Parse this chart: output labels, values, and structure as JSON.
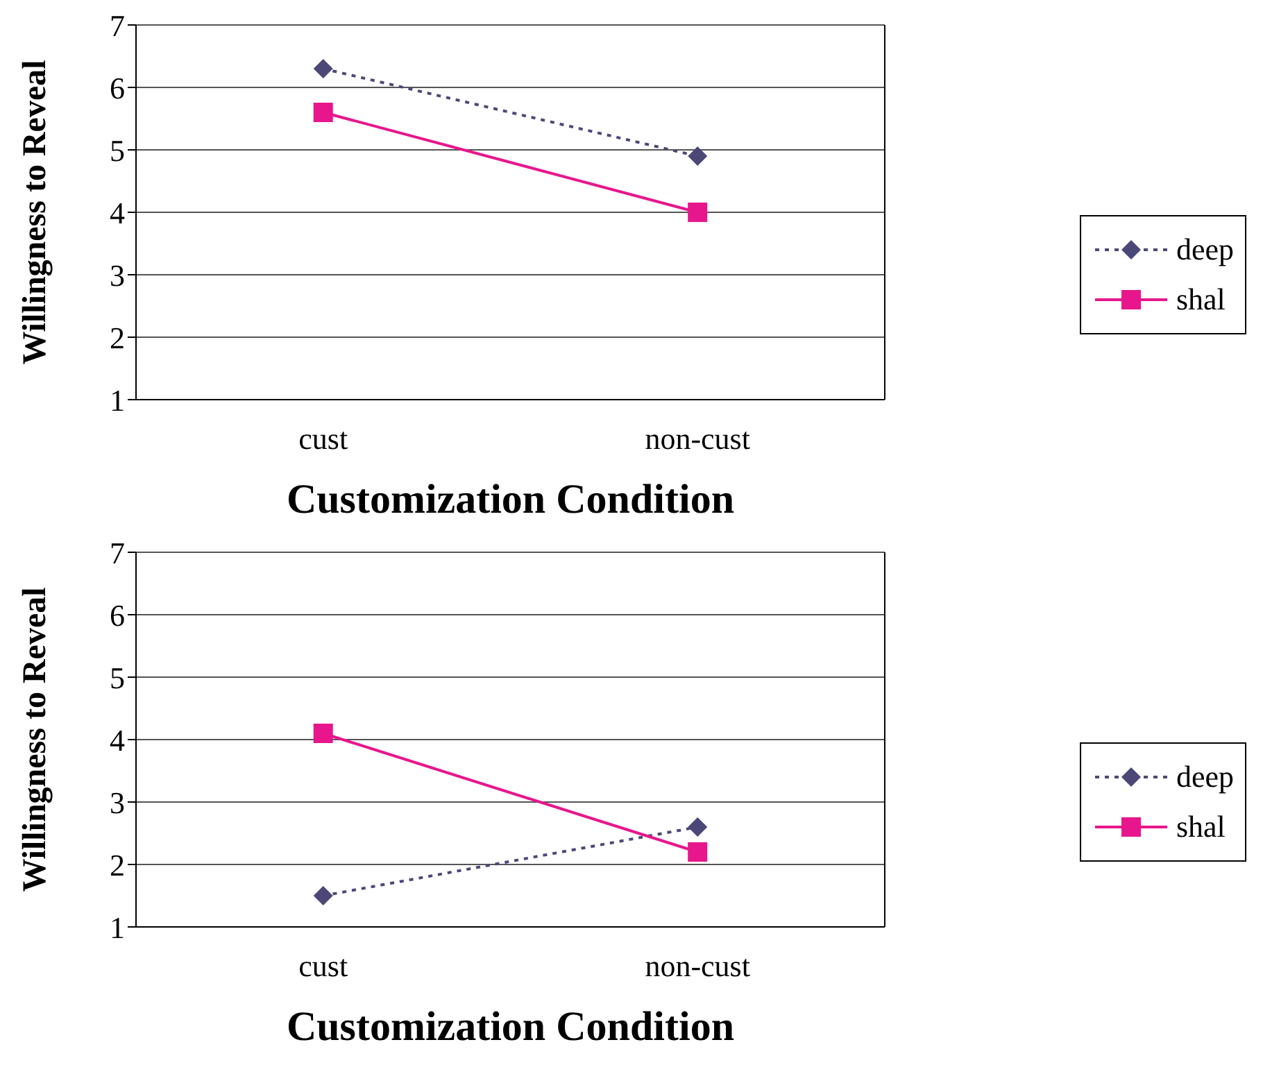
{
  "chart_data": [
    {
      "type": "line",
      "xlabel": "Customization Condition",
      "ylabel": "Willingness to Reveal",
      "categories": [
        "cust",
        "non-cust"
      ],
      "ylim": [
        1,
        7
      ],
      "yticks": [
        1,
        2,
        3,
        4,
        5,
        6,
        7
      ],
      "grid": "y",
      "legend": "right",
      "series": [
        {
          "name": "deep",
          "color": "#4b4878",
          "values": [
            6.3,
            4.9
          ],
          "marker": "diamond",
          "line_style": "dotted"
        },
        {
          "name": "shal",
          "color": "#e8168c",
          "values": [
            5.6,
            4.0
          ],
          "marker": "square",
          "line_style": "solid"
        }
      ]
    },
    {
      "type": "line",
      "xlabel": "Customization Condition",
      "ylabel": "Willingness to Reveal",
      "categories": [
        "cust",
        "non-cust"
      ],
      "ylim": [
        1,
        7
      ],
      "yticks": [
        1,
        2,
        3,
        4,
        5,
        6,
        7
      ],
      "grid": "y",
      "legend": "right",
      "series": [
        {
          "name": "deep",
          "color": "#4b4878",
          "values": [
            1.5,
            2.6
          ],
          "marker": "diamond",
          "line_style": "dotted"
        },
        {
          "name": "shal",
          "color": "#e8168c",
          "values": [
            4.1,
            2.2
          ],
          "marker": "square",
          "line_style": "solid"
        }
      ]
    }
  ]
}
